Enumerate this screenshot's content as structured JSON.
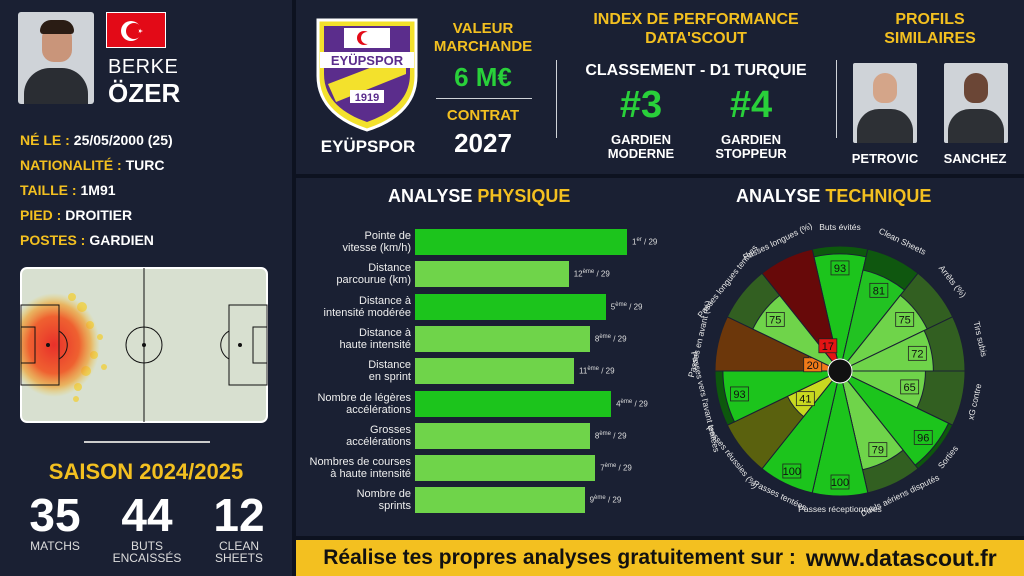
{
  "player": {
    "first_name": "BERKE",
    "last_name": "ÖZER",
    "flag_icon": "turkey-flag-icon",
    "info": [
      {
        "key": "NÉ LE :",
        "value": "25/05/2000 (25)"
      },
      {
        "key": "NATIONALITÉ :",
        "value": "TURC"
      },
      {
        "key": "TAILLE :",
        "value": "1M91"
      },
      {
        "key": "PIED :",
        "value": "DROITIER"
      },
      {
        "key": "POSTES :",
        "value": "GARDIEN"
      }
    ]
  },
  "season": {
    "title": "SAISON 2024/2025",
    "stats": [
      {
        "value": "35",
        "label_1": "MATCHS",
        "label_2": ""
      },
      {
        "value": "44",
        "label_1": "BUTS",
        "label_2": "ENCAISSÉS"
      },
      {
        "value": "12",
        "label_1": "CLEAN",
        "label_2": "SHEETS"
      }
    ]
  },
  "club": {
    "name": "EYÜPSPOR",
    "crest_text": "EYÜPSPOR",
    "crest_year": "1919",
    "crest_colors": [
      "#5b2d8c",
      "#f3e12c"
    ]
  },
  "market": {
    "value_title_1": "VALEUR",
    "value_title_2": "MARCHANDE",
    "value": "6 M€",
    "contract_title": "CONTRAT",
    "contract": "2027"
  },
  "index": {
    "title_1": "INDEX DE PERFORMANCE",
    "title_2": "DATA'SCOUT",
    "ranking_title": "CLASSEMENT - D1 TURQUIE",
    "ranks": [
      {
        "value": "#3",
        "label_1": "GARDIEN",
        "label_2": "MODERNE"
      },
      {
        "value": "#4",
        "label_1": "GARDIEN",
        "label_2": "STOPPEUR"
      }
    ]
  },
  "similar": {
    "title_1": "PROFILS",
    "title_2": "SIMILAIRES",
    "players": [
      "PETROVIC",
      "SANCHEZ"
    ]
  },
  "physique": {
    "title_main": "ANALYSE",
    "title_accent": "PHYSIQUE",
    "bars": [
      {
        "label_1": "Pointe de",
        "label_2": "vitesse (km/h)",
        "rank": 1,
        "rank_suffix": "er",
        "total": "/ 29"
      },
      {
        "label_1": "Distance",
        "label_2": "parcourue (km)",
        "rank": 12,
        "rank_suffix": "ème",
        "total": "/ 29"
      },
      {
        "label_1": "Distance à",
        "label_2": "intensité modérée",
        "rank": 5,
        "rank_suffix": "ème",
        "total": "/ 29"
      },
      {
        "label_1": "Distance à",
        "label_2": "haute intensité",
        "rank": 8,
        "rank_suffix": "ème",
        "total": "/ 29"
      },
      {
        "label_1": "Distance",
        "label_2": "en sprint",
        "rank": 11,
        "rank_suffix": "ème",
        "total": "/ 29"
      },
      {
        "label_1": "Nombre de légères",
        "label_2": "accélérations",
        "rank": 4,
        "rank_suffix": "ème",
        "total": "/ 29"
      },
      {
        "label_1": "Grosses",
        "label_2": "accélérations",
        "rank": 8,
        "rank_suffix": "ème",
        "total": "/ 29"
      },
      {
        "label_1": "Nombres de courses",
        "label_2": "à haute intensité",
        "rank": 7,
        "rank_suffix": "ème",
        "total": "/ 29"
      },
      {
        "label_1": "Nombre de",
        "label_2": "sprints",
        "rank": 9,
        "rank_suffix": "ème",
        "total": "/ 29"
      }
    ]
  },
  "technique": {
    "title_main": "ANALYSE",
    "title_accent": "TECHNIQUE",
    "segments": [
      {
        "label": "Buts évités",
        "value": 93,
        "color": "#1cc41c"
      },
      {
        "label": "Clean Sheets",
        "value": 81,
        "color": "#22c222"
      },
      {
        "label": "Arrêts (%)",
        "value": 75,
        "color": "#6fd44a"
      },
      {
        "label": "Tirs subis",
        "value": 72,
        "color": "#6fd44a"
      },
      {
        "label": "xG contre",
        "value": 65,
        "color": "#6fd44a"
      },
      {
        "label": "Sorties",
        "value": 96,
        "color": "#1cc41c"
      },
      {
        "label": "Duels aériens disputés",
        "value": 79,
        "color": "#6fd44a"
      },
      {
        "label": "Passes réceptionnées",
        "value": 100,
        "color": "#1cc41c"
      },
      {
        "label": "Passes tentées",
        "value": 100,
        "color": "#1cc41c"
      },
      {
        "label": "Passes réussies (%)",
        "value": 41,
        "color": "#c8d820"
      },
      {
        "label": "Passes vers l'avant tentées",
        "value": 93,
        "color": "#1cc41c"
      },
      {
        "label": "Passes en avant (%)",
        "value": 20,
        "color": "#f07a18"
      },
      {
        "label": "Passes longues tentées",
        "value": 75,
        "color": "#6fd44a"
      },
      {
        "label": "Passes longues (%)",
        "value": 17,
        "color": "#e41414"
      }
    ]
  },
  "banner": {
    "text": "Réalise tes propres analyses gratuitement sur :",
    "url": "www.datascout.fr"
  }
}
